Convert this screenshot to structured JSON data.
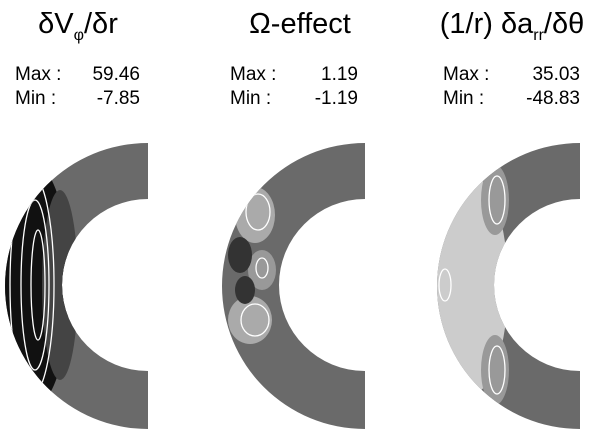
{
  "panels": [
    {
      "title": [
        {
          "text": "δV"
        },
        {
          "sub": "φ"
        },
        {
          "text": "/δr"
        }
      ],
      "max_label": "Max :",
      "max": 59.46,
      "min_label": "Min  :",
      "min": -7.85
    },
    {
      "title": [
        {
          "text": "Ω-effect"
        }
      ],
      "max_label": "Max :",
      "max": 1.19,
      "min_label": "Min  :",
      "min": -1.19
    },
    {
      "title": [
        {
          "text": "(1/r) δa"
        },
        {
          "sub": "rr"
        },
        {
          "text": "/δθ"
        }
      ],
      "max_label": "Max :",
      "max": 35.03,
      "min_label": "Min  :",
      "min": -48.83
    }
  ]
}
